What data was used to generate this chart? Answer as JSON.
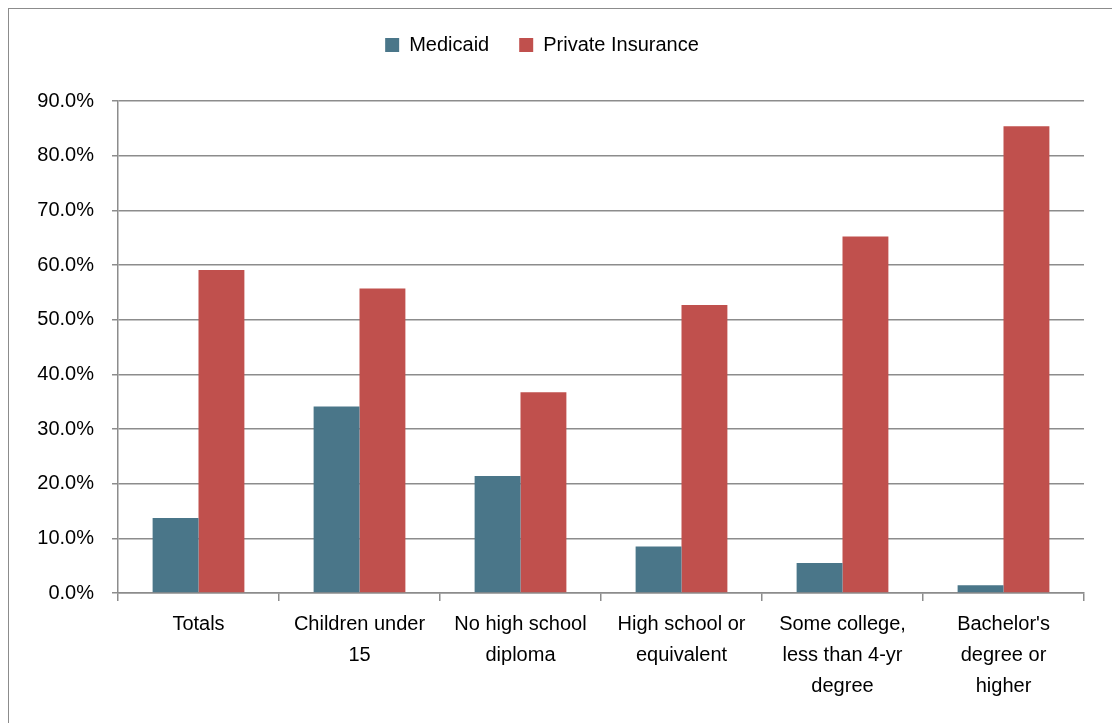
{
  "chart_data": {
    "type": "bar",
    "categories": [
      "Totals",
      "Children under 15",
      "No high school diploma",
      "High school or equivalent",
      "Some college, less than 4-yr degree",
      "Bachelor's degree or higher"
    ],
    "series": [
      {
        "name": "Medicaid",
        "color": "#4a7689",
        "values": [
          13.7,
          34.1,
          21.4,
          8.5,
          5.5,
          1.4
        ]
      },
      {
        "name": "Private Insurance",
        "color": "#c0504d",
        "values": [
          59.1,
          55.7,
          36.7,
          52.7,
          65.2,
          85.4
        ]
      }
    ],
    "ylim": [
      0,
      90
    ],
    "yticks": [
      {
        "value": 0,
        "label": "0.0%"
      },
      {
        "value": 10,
        "label": "10.0%"
      },
      {
        "value": 20,
        "label": "20.0%"
      },
      {
        "value": 30,
        "label": "30.0%"
      },
      {
        "value": 40,
        "label": "40.0%"
      },
      {
        "value": 50,
        "label": "50.0%"
      },
      {
        "value": 60,
        "label": "60.0%"
      },
      {
        "value": 70,
        "label": "70.0%"
      },
      {
        "value": 80,
        "label": "80.0%"
      },
      {
        "value": 90,
        "label": "90.0%"
      }
    ],
    "grid": "y",
    "legend": "top"
  }
}
